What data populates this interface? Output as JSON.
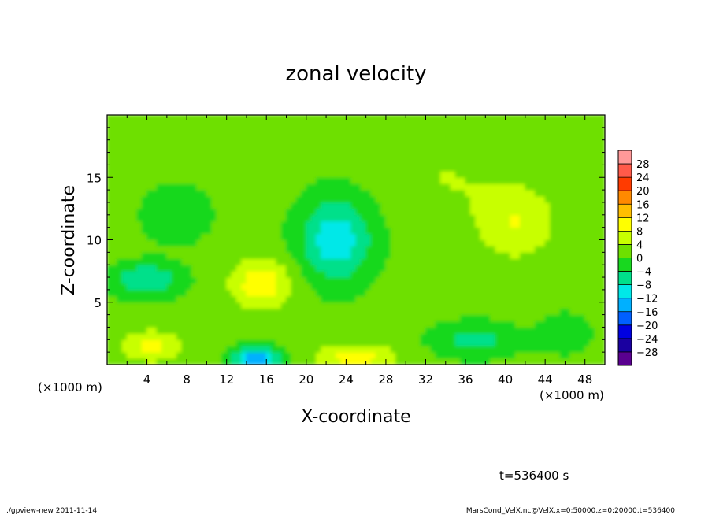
{
  "chart_data": {
    "type": "heatmap",
    "title": "zonal velocity",
    "xlabel": "X-coordinate",
    "ylabel": "Z-coordinate",
    "x_unit": "(×1000 m)",
    "xlim": [
      0,
      50
    ],
    "ylim": [
      0,
      20
    ],
    "x_ticks": [
      "4",
      "8",
      "12",
      "16",
      "20",
      "24",
      "28",
      "32",
      "36",
      "40",
      "44",
      "48"
    ],
    "y_ticks": [
      "5",
      "10",
      "15"
    ],
    "colorbar": {
      "levels": [
        "28",
        "24",
        "20",
        "16",
        "12",
        "8",
        "4",
        "0",
        "-4",
        "-8",
        "-12",
        "-16",
        "-20",
        "-24",
        "-28"
      ],
      "colors": [
        "#ff9999",
        "#ff5a4a",
        "#ff3b00",
        "#ff8a00",
        "#ffbf00",
        "#ffff00",
        "#c8ff00",
        "#6ee000",
        "#18d81f",
        "#00e08a",
        "#00e8e8",
        "#00b0ff",
        "#0060ff",
        "#0000e0",
        "#1a00a0",
        "#5a0090"
      ]
    },
    "background_value": 1,
    "features": [
      {
        "x": 15.5,
        "z": 6.5,
        "value": 10,
        "sx": 3.0,
        "sz": 2.0
      },
      {
        "x": 4.5,
        "z": 1.5,
        "value": 8,
        "sx": 3.0,
        "sz": 1.3
      },
      {
        "x": 25,
        "z": 0.6,
        "value": 9,
        "sx": 4.0,
        "sz": 1.1
      },
      {
        "x": 41,
        "z": 11.5,
        "value": 7,
        "sx": 4.0,
        "sz": 3.0
      },
      {
        "x": 15,
        "z": 0.5,
        "value": -17,
        "sx": 2.2,
        "sz": 0.9
      },
      {
        "x": 23,
        "z": 10,
        "value": -12,
        "sx": 3.5,
        "sz": 3.2
      },
      {
        "x": 4,
        "z": 6.8,
        "value": -9,
        "sx": 3.3,
        "sz": 1.3
      },
      {
        "x": 7,
        "z": 12,
        "value": -5,
        "sx": 3.0,
        "sz": 2.0
      },
      {
        "x": 37,
        "z": 2.0,
        "value": -7,
        "sx": 4.0,
        "sz": 1.3
      },
      {
        "x": 46,
        "z": 2.5,
        "value": -4,
        "sx": 2.5,
        "sz": 1.5
      },
      {
        "x": 34,
        "z": 15,
        "value": 3,
        "sx": 5.0,
        "sz": 3.0
      }
    ]
  },
  "annotations": {
    "time": "t=536400 s",
    "footer_left": "./gpview-new  2011-11-14",
    "footer_right": "MarsCond_VelX.nc@VelX,x=0:50000,z=0:20000,t=536400"
  }
}
